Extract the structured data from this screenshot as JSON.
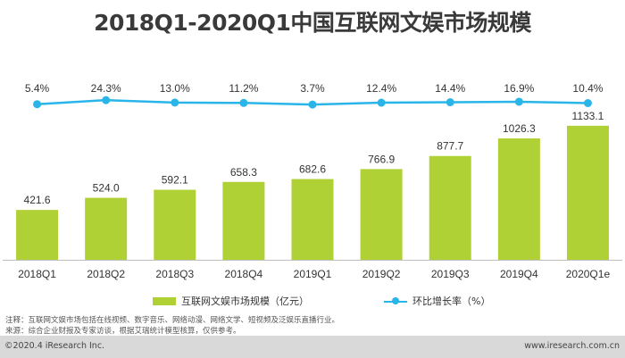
{
  "chart_data": {
    "type": "bar",
    "title": "2018Q1-2020Q1中国互联网文娱市场规模",
    "categories": [
      "2018Q1",
      "2018Q2",
      "2018Q3",
      "2018Q4",
      "2019Q1",
      "2019Q2",
      "2019Q3",
      "2019Q4",
      "2020Q1e"
    ],
    "series": [
      {
        "name": "互联网文娱市场规模（亿元）",
        "type": "bar",
        "values": [
          421.6,
          524.0,
          592.1,
          658.3,
          682.6,
          766.9,
          877.7,
          1026.3,
          1133.1
        ],
        "labels": [
          "421.6",
          "524.0",
          "592.1",
          "658.3",
          "682.6",
          "766.9",
          "877.7",
          "1026.3",
          "1133.1"
        ],
        "color": "#b0d136"
      },
      {
        "name": "环比增长率（%）",
        "type": "line",
        "values": [
          5.4,
          24.3,
          13.0,
          11.2,
          3.7,
          12.4,
          14.4,
          16.9,
          10.4
        ],
        "labels": [
          "5.4%",
          "24.3%",
          "13.0%",
          "11.2%",
          "3.7%",
          "12.4%",
          "14.4%",
          "16.9%",
          "10.4%"
        ],
        "color": "#29b5e8"
      }
    ],
    "xlabel": "",
    "ylabel": "",
    "ylim": [
      0,
      1200
    ],
    "grid": false,
    "legend": "bottom"
  },
  "notes": {
    "note": "注释：互联网文娱市场包括在线视频、数字音乐、网络动漫、网络文学、短视频及泛娱乐直播行业。",
    "source": "来源：综合企业财报及专家访谈，根据艾瑞统计模型核算，仅供参考。"
  },
  "footer": {
    "copyright": "©2020.4 iResearch Inc.",
    "website": "www.iresearch.com.cn"
  }
}
